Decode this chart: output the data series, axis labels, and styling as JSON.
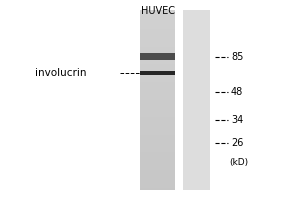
{
  "background_color": "#ffffff",
  "title": "HUVEC",
  "title_fontsize": 7,
  "label_text": "involucrin",
  "label_fontsize": 7.5,
  "mw_markers": [
    "85",
    "48",
    "34",
    "26"
  ],
  "kd_label": "(kD)",
  "lane1_color": 0.8,
  "lane2_color": 0.87,
  "band1_darkness": 0.3,
  "band1_thickness": 0.018,
  "band2_darkness": 0.15,
  "band2_thickness": 0.01
}
